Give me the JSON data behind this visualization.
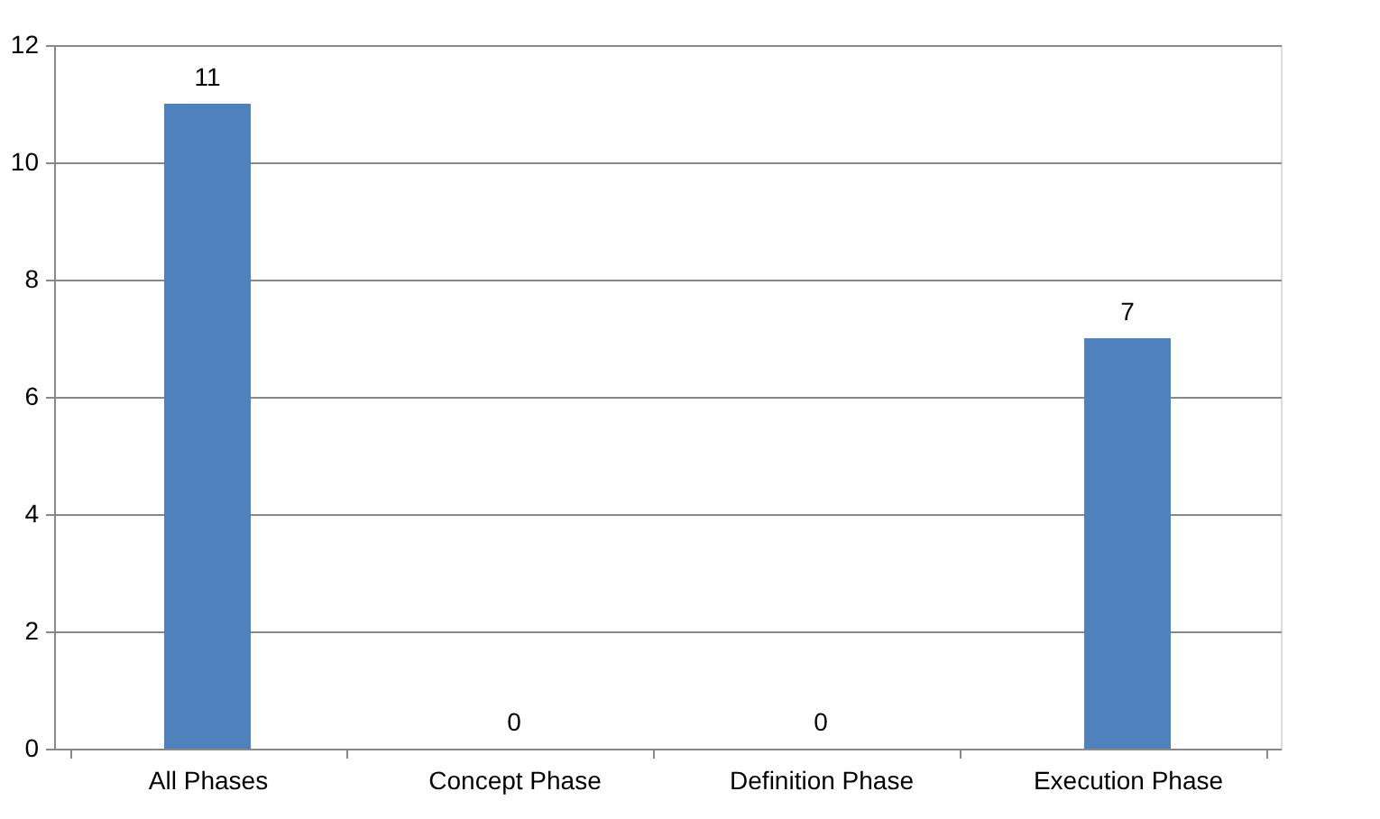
{
  "chart_data": {
    "type": "bar",
    "categories": [
      "All Phases",
      "Concept Phase",
      "Definition Phase",
      "Execution Phase"
    ],
    "values": [
      11,
      0,
      0,
      7
    ],
    "color": "#4f81bd",
    "ylim": [
      0,
      12
    ],
    "yticks": [
      0,
      2,
      4,
      6,
      8,
      10,
      12
    ],
    "grid": "y",
    "data_labels": true
  }
}
